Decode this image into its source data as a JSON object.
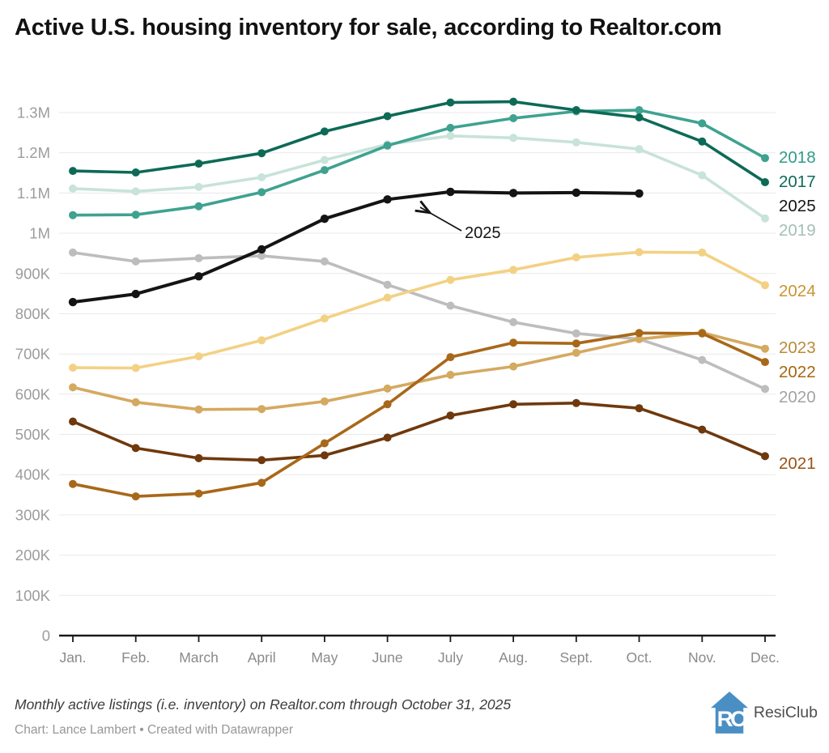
{
  "header": {
    "title": "Active U.S. housing inventory for sale, according to Realtor.com"
  },
  "chart_data": {
    "type": "line",
    "title": "Active U.S. housing inventory for sale, according to Realtor.com",
    "xlabel": "",
    "ylabel": "",
    "unit": "active listings",
    "ylim": [
      0,
      1300000
    ],
    "grid": "horizontal, 100K steps",
    "legend_position": "right-edge-line-labels",
    "x": [
      "Jan.",
      "Feb.",
      "March",
      "April",
      "May",
      "June",
      "July",
      "Aug.",
      "Sept.",
      "Oct.",
      "Nov.",
      "Dec."
    ],
    "y_ticks": [
      {
        "label": "1.3M",
        "value": 1300000
      },
      {
        "label": "1.2M",
        "value": 1200000
      },
      {
        "label": "1.1M",
        "value": 1100000
      },
      {
        "label": "1M",
        "value": 1000000
      },
      {
        "label": "900K",
        "value": 900000
      },
      {
        "label": "800K",
        "value": 800000
      },
      {
        "label": "700K",
        "value": 700000
      },
      {
        "label": "600K",
        "value": 600000
      },
      {
        "label": "500K",
        "value": 500000
      },
      {
        "label": "400K",
        "value": 400000
      },
      {
        "label": "300K",
        "value": 300000
      },
      {
        "label": "200K",
        "value": 200000
      },
      {
        "label": "100K",
        "value": 100000
      },
      {
        "label": "0",
        "value": 0
      }
    ],
    "series": [
      {
        "name": "2017",
        "color": "#0d6a57",
        "label_color": "#0e6a58",
        "values": [
          1155000,
          1151000,
          1173000,
          1199000,
          1253000,
          1291000,
          1325000,
          1327000,
          1306000,
          1288000,
          1228000,
          1127000
        ]
      },
      {
        "name": "2018",
        "color": "#3fa290",
        "label_color": "#2f9c89",
        "values": [
          1045000,
          1046000,
          1067000,
          1102000,
          1157000,
          1218000,
          1262000,
          1286000,
          1303000,
          1306000,
          1273000,
          1187000
        ]
      },
      {
        "name": "2019",
        "color": "#c8e3d9",
        "label_color": "#a5c0b5",
        "values": [
          1111000,
          1104000,
          1115000,
          1139000,
          1182000,
          1221000,
          1242000,
          1237000,
          1226000,
          1209000,
          1144000,
          1037000
        ]
      },
      {
        "name": "2020",
        "color": "#bdbdbd",
        "label_color": "#a3a3a3",
        "values": [
          952000,
          930000,
          938000,
          944000,
          930000,
          872000,
          820000,
          779000,
          751000,
          737000,
          685000,
          613000
        ]
      },
      {
        "name": "2021",
        "color": "#6f390d",
        "label_color": "#9a5216",
        "values": [
          532000,
          466000,
          441000,
          436000,
          448000,
          492000,
          547000,
          575000,
          578000,
          565000,
          512000,
          446000
        ]
      },
      {
        "name": "2022",
        "color": "#a8681a",
        "label_color": "#a8660f",
        "values": [
          377000,
          346000,
          353000,
          380000,
          478000,
          575000,
          692000,
          728000,
          726000,
          752000,
          751000,
          680000
        ]
      },
      {
        "name": "2023",
        "color": "#d4a960",
        "label_color": "#ba8a3a",
        "values": [
          617000,
          580000,
          562000,
          563000,
          582000,
          614000,
          648000,
          669000,
          703000,
          737000,
          753000,
          713000
        ]
      },
      {
        "name": "2024",
        "color": "#f3d184",
        "label_color": "#c89534",
        "values": [
          666000,
          665000,
          694000,
          734000,
          788000,
          840000,
          884000,
          909000,
          940000,
          953000,
          952000,
          871000
        ]
      },
      {
        "name": "2025",
        "color": "#141414",
        "label_color": "#151515",
        "values": [
          829000,
          849000,
          893000,
          960000,
          1036000,
          1084000,
          1103000,
          1100000,
          1101000,
          1099000,
          null,
          null
        ]
      }
    ],
    "annotation": {
      "text": "2025"
    }
  },
  "footer": {
    "note": "Monthly active listings (i.e. inventory) on Realtor.com through October 31, 2025",
    "credit": "Chart: Lance Lambert • Created with Datawrapper",
    "brand": "ResiClub",
    "brand_icon": "resiclub-house-logo",
    "brand_color": "#4a8fc4"
  }
}
